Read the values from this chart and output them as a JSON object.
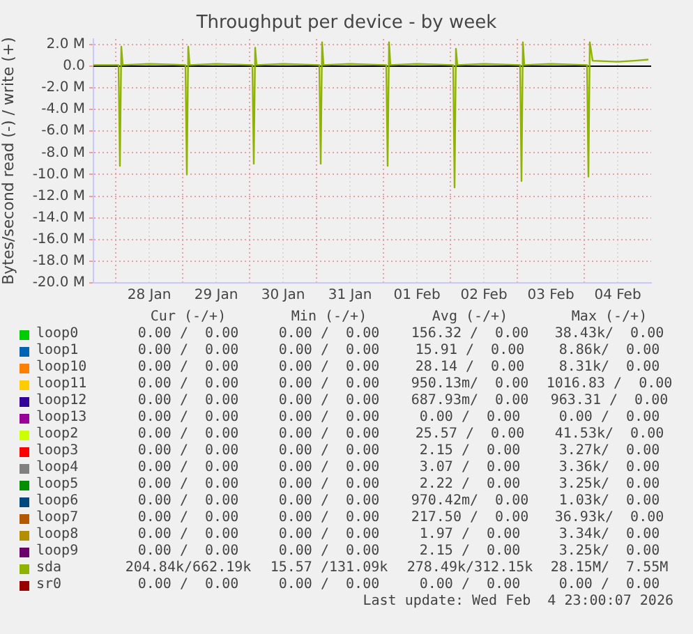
{
  "chart_data": {
    "type": "line",
    "title": "Throughput per device - by week",
    "ylabel": "Bytes/second read (-) / write (+)",
    "xlim": [
      "2026-01-27T16:00",
      "2026-02-05T00:00"
    ],
    "xticks": [
      {
        "value": "2026-01-28T00:00",
        "label": null
      },
      {
        "value": "2026-01-28T12:00",
        "label": "28 Jan"
      },
      {
        "value": "2026-01-29T00:00",
        "label": null
      },
      {
        "value": "2026-01-29T12:00",
        "label": "29 Jan"
      },
      {
        "value": "2026-01-30T00:00",
        "label": null
      },
      {
        "value": "2026-01-30T12:00",
        "label": "30 Jan"
      },
      {
        "value": "2026-01-31T00:00",
        "label": null
      },
      {
        "value": "2026-01-31T12:00",
        "label": "31 Jan"
      },
      {
        "value": "2026-02-01T00:00",
        "label": null
      },
      {
        "value": "2026-02-01T12:00",
        "label": "01 Feb"
      },
      {
        "value": "2026-02-02T00:00",
        "label": null
      },
      {
        "value": "2026-02-02T12:00",
        "label": "02 Feb"
      },
      {
        "value": "2026-02-03T00:00",
        "label": null
      },
      {
        "value": "2026-02-03T12:00",
        "label": "03 Feb"
      },
      {
        "value": "2026-02-04T00:00",
        "label": null
      },
      {
        "value": "2026-02-04T12:00",
        "label": "04 Feb"
      }
    ],
    "ylim": [
      -20000000,
      2500000
    ],
    "yticks": [
      {
        "value": 2000000,
        "label": "2.0 M"
      },
      {
        "value": 0,
        "label": "0.0"
      },
      {
        "value": -2000000,
        "label": "-2.0 M"
      },
      {
        "value": -4000000,
        "label": "-4.0 M"
      },
      {
        "value": -6000000,
        "label": "-6.0 M"
      },
      {
        "value": -8000000,
        "label": "-8.0 M"
      },
      {
        "value": -10000000,
        "label": "-10.0 M"
      },
      {
        "value": -12000000,
        "label": "-12.0 M"
      },
      {
        "value": -14000000,
        "label": "-14.0 M"
      },
      {
        "value": -16000000,
        "label": "-16.0 M"
      },
      {
        "value": -18000000,
        "label": "-18.0 M"
      },
      {
        "value": -20000000,
        "label": "-20.0 M"
      }
    ],
    "grid": true,
    "legend": "bottom",
    "marker": "none",
    "line_style": "solid",
    "ref_lines": [
      {
        "axis": "y",
        "value": 0,
        "color": "#000000"
      }
    ],
    "series": [
      {
        "name": "loop0",
        "color": "#00cc00"
      },
      {
        "name": "loop1",
        "color": "#0066b3"
      },
      {
        "name": "loop10",
        "color": "#ff8000"
      },
      {
        "name": "loop11",
        "color": "#ffcc00"
      },
      {
        "name": "loop12",
        "color": "#330099"
      },
      {
        "name": "loop13",
        "color": "#990099"
      },
      {
        "name": "loop2",
        "color": "#ccff00"
      },
      {
        "name": "loop3",
        "color": "#ff0000"
      },
      {
        "name": "loop4",
        "color": "#808080"
      },
      {
        "name": "loop5",
        "color": "#008f00"
      },
      {
        "name": "loop6",
        "color": "#00487d"
      },
      {
        "name": "loop7",
        "color": "#b35a00"
      },
      {
        "name": "loop8",
        "color": "#b38f00"
      },
      {
        "name": "loop9",
        "color": "#6b006b"
      },
      {
        "name": "sda",
        "color": "#8fb300",
        "x": [
          "2026-01-27T16:00",
          "2026-01-28T01:00",
          "2026-01-28T01:30",
          "2026-01-28T02:00",
          "2026-01-28T02:30",
          "2026-01-28T12:00",
          "2026-01-29T01:00",
          "2026-01-29T01:30",
          "2026-01-29T02:00",
          "2026-01-29T02:30",
          "2026-01-29T12:00",
          "2026-01-30T01:00",
          "2026-01-30T01:30",
          "2026-01-30T02:00",
          "2026-01-30T02:30",
          "2026-01-30T12:00",
          "2026-01-31T01:00",
          "2026-01-31T01:30",
          "2026-01-31T02:00",
          "2026-01-31T02:30",
          "2026-01-31T12:00",
          "2026-02-01T01:00",
          "2026-02-01T01:30",
          "2026-02-01T02:00",
          "2026-02-01T02:30",
          "2026-02-01T12:00",
          "2026-02-02T01:00",
          "2026-02-02T01:30",
          "2026-02-02T02:00",
          "2026-02-02T02:30",
          "2026-02-02T12:00",
          "2026-02-03T01:00",
          "2026-02-03T01:30",
          "2026-02-03T02:00",
          "2026-02-03T02:30",
          "2026-02-03T12:00",
          "2026-02-04T01:00",
          "2026-02-04T01:30",
          "2026-02-04T02:00",
          "2026-02-04T03:00",
          "2026-02-04T12:00",
          "2026-02-04T18:00",
          "2026-02-04T23:00"
        ],
        "values": [
          100000,
          100000,
          -9200000,
          1800000,
          100000,
          200000,
          100000,
          -10000000,
          1800000,
          100000,
          200000,
          100000,
          -9000000,
          1700000,
          100000,
          200000,
          100000,
          -9000000,
          2200000,
          100000,
          200000,
          100000,
          -9200000,
          2200000,
          100000,
          200000,
          100000,
          -11200000,
          1600000,
          100000,
          200000,
          100000,
          -10600000,
          2200000,
          100000,
          200000,
          100000,
          -10200000,
          2200000,
          500000,
          400000,
          500000,
          600000
        ]
      },
      {
        "name": "sr0",
        "color": "#990000"
      }
    ],
    "annotations": [
      "Cur (-/+)",
      "Min (-/+)",
      "Avg (-/+)",
      "Max (-/+)",
      "0.00 /  0.00",
      "0.00 /  0.00",
      "156.32 /  0.00",
      "38.43k/  0.00",
      "0.00 /  0.00",
      "0.00 /  0.00",
      "15.91 /  0.00",
      "8.86k/  0.00",
      "0.00 /  0.00",
      "0.00 /  0.00",
      "28.14 /  0.00",
      "8.31k/  0.00",
      "0.00 /  0.00",
      "0.00 /  0.00",
      "950.13m/  0.00",
      "1016.83 /  0.00",
      "0.00 /  0.00",
      "0.00 /  0.00",
      "687.93m/  0.00",
      "963.31 /  0.00",
      "0.00 /  0.00",
      "0.00 /  0.00",
      "0.00 /  0.00",
      "0.00 /  0.00",
      "0.00 /  0.00",
      "0.00 /  0.00",
      "25.57 /  0.00",
      "41.53k/  0.00",
      "0.00 /  0.00",
      "0.00 /  0.00",
      "2.15 /  0.00",
      "3.27k/  0.00",
      "0.00 /  0.00",
      "0.00 /  0.00",
      "3.07 /  0.00",
      "3.36k/  0.00",
      "0.00 /  0.00",
      "0.00 /  0.00",
      "2.22 /  0.00",
      "3.25k/  0.00",
      "0.00 /  0.00",
      "0.00 /  0.00",
      "970.42m/  0.00",
      "1.03k/  0.00",
      "0.00 /  0.00",
      "0.00 /  0.00",
      "217.50 /  0.00",
      "36.93k/  0.00",
      "0.00 /  0.00",
      "0.00 /  0.00",
      "1.97 /  0.00",
      "3.34k/  0.00",
      "0.00 /  0.00",
      "0.00 /  0.00",
      "2.15 /  0.00",
      "3.25k/  0.00",
      "204.84k/662.19k",
      "15.57 /131.09k",
      "278.49k/312.15k",
      "28.15M/  7.55M",
      "0.00 /  0.00",
      "0.00 /  0.00",
      "0.00 /  0.00",
      "0.00 /  0.00",
      "Last update: Wed Feb  4 23:00:07 2026"
    ]
  }
}
